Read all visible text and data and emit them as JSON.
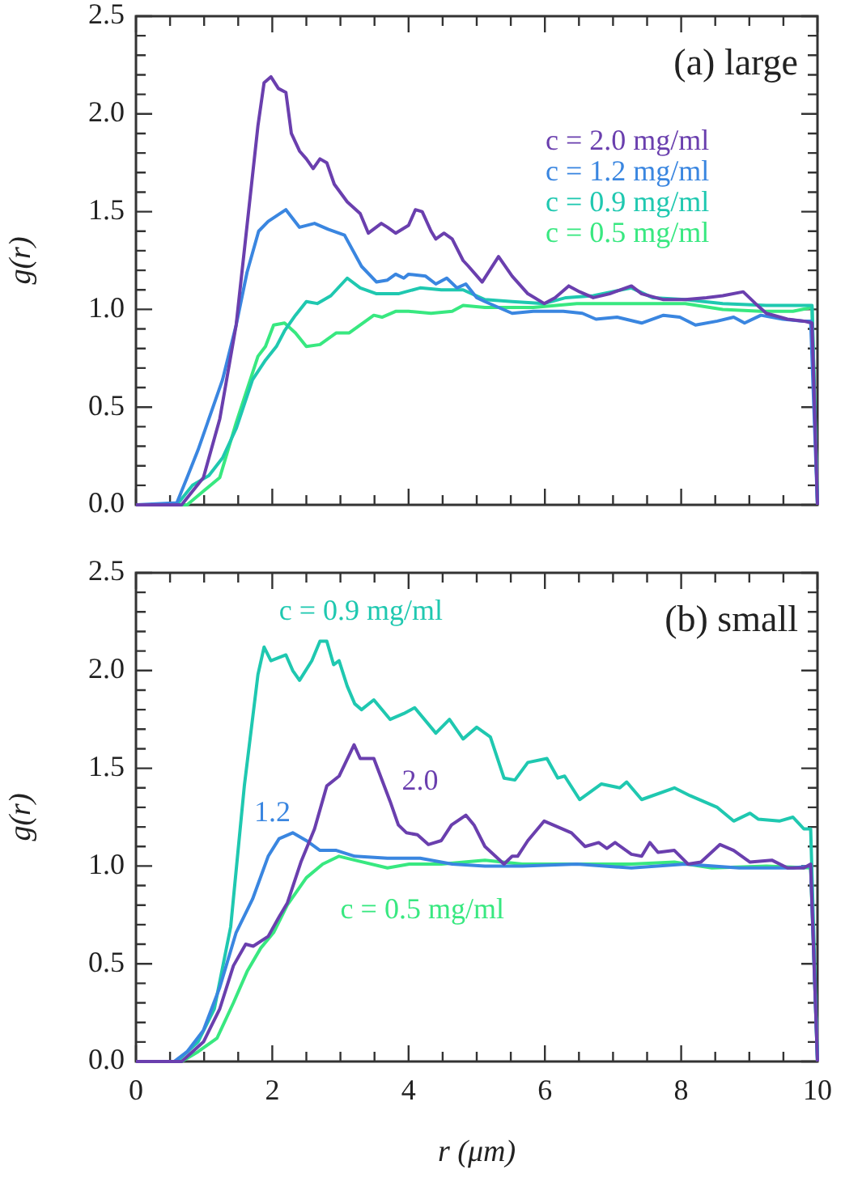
{
  "chart_data": [
    {
      "type": "line",
      "title": "(a) large",
      "ylabel": "g(r)",
      "legend": "top right",
      "tick_labels": "y",
      "grid": false,
      "marker": "none",
      "line_style": "solid",
      "xlim": [
        0,
        10
      ],
      "ylim": [
        0,
        2.5
      ],
      "xticks": [
        0,
        {
          "value": 0.5,
          "label": null
        },
        {
          "value": 1,
          "label": null
        },
        {
          "value": 1.5,
          "label": null
        },
        2,
        {
          "value": 2.5,
          "label": null
        },
        {
          "value": 3,
          "label": null
        },
        {
          "value": 3.5,
          "label": null
        },
        4,
        {
          "value": 4.5,
          "label": null
        },
        {
          "value": 5,
          "label": null
        },
        {
          "value": 5.5,
          "label": null
        },
        6,
        {
          "value": 6.5,
          "label": null
        },
        {
          "value": 7,
          "label": null
        },
        {
          "value": 7.5,
          "label": null
        },
        8,
        {
          "value": 8.5,
          "label": null
        },
        {
          "value": 9,
          "label": null
        },
        {
          "value": 9.5,
          "label": null
        },
        10
      ],
      "yticks": [
        {
          "value": 0,
          "label": "0.0"
        },
        {
          "value": 0.1,
          "label": null
        },
        {
          "value": 0.2,
          "label": null
        },
        {
          "value": 0.3,
          "label": null
        },
        {
          "value": 0.4,
          "label": null
        },
        0.5,
        {
          "value": 0.6,
          "label": null
        },
        {
          "value": 0.7,
          "label": null
        },
        {
          "value": 0.8,
          "label": null
        },
        {
          "value": 0.9,
          "label": null
        },
        {
          "value": 1,
          "label": "1.0"
        },
        {
          "value": 1.1,
          "label": null
        },
        {
          "value": 1.2,
          "label": null
        },
        {
          "value": 1.3,
          "label": null
        },
        {
          "value": 1.4,
          "label": null
        },
        1.5,
        {
          "value": 1.6,
          "label": null
        },
        {
          "value": 1.7,
          "label": null
        },
        {
          "value": 1.8,
          "label": null
        },
        {
          "value": 1.9,
          "label": null
        },
        {
          "value": 2,
          "label": "2.0"
        },
        {
          "value": 2.1,
          "label": null
        },
        {
          "value": 2.2,
          "label": null
        },
        {
          "value": 2.3,
          "label": null
        },
        {
          "value": 2.4,
          "label": null
        },
        2.5
      ],
      "series": [
        {
          "name": "c = 2.0 mg/ml",
          "color": "#6a3fae",
          "x": [
            0,
            0.67,
            0.99,
            1.23,
            1.47,
            1.79,
            1.88,
            1.98,
            2.09,
            2.2,
            2.28,
            2.4,
            2.5,
            2.6,
            2.7,
            2.8,
            2.91,
            3.1,
            3.29,
            3.41,
            3.6,
            3.69,
            3.81,
            4.0,
            4.1,
            4.2,
            4.33,
            4.4,
            4.52,
            4.64,
            4.8,
            4.88,
            5.08,
            5.32,
            5.52,
            5.75,
            5.99,
            6.15,
            6.35,
            6.51,
            6.71,
            6.95,
            7.27,
            7.42,
            7.74,
            8.06,
            8.37,
            8.61,
            8.91,
            9.09,
            9.25,
            9.56,
            9.8,
            9.92,
            10
          ],
          "values": [
            0,
            0,
            0.14,
            0.44,
            0.92,
            1.94,
            2.16,
            2.19,
            2.13,
            2.11,
            1.9,
            1.81,
            1.77,
            1.72,
            1.77,
            1.75,
            1.64,
            1.55,
            1.49,
            1.39,
            1.44,
            1.42,
            1.39,
            1.43,
            1.51,
            1.5,
            1.4,
            1.36,
            1.39,
            1.36,
            1.25,
            1.22,
            1.14,
            1.27,
            1.17,
            1.08,
            1.03,
            1.06,
            1.12,
            1.09,
            1.06,
            1.08,
            1.12,
            1.08,
            1.05,
            1.05,
            1.06,
            1.07,
            1.09,
            1.03,
            0.98,
            0.95,
            0.94,
            0.93,
            0
          ]
        },
        {
          "name": "c = 1.2 mg/ml",
          "color": "#3a86e0",
          "x": [
            0,
            0.6,
            0.75,
            0.91,
            1.07,
            1.27,
            1.47,
            1.63,
            1.8,
            1.94,
            2.2,
            2.4,
            2.62,
            2.82,
            3.06,
            3.31,
            3.53,
            3.69,
            3.81,
            3.93,
            4.0,
            4.25,
            4.4,
            4.56,
            4.71,
            4.84,
            5.0,
            5.12,
            5.52,
            5.83,
            6.27,
            6.55,
            6.75,
            7.06,
            7.42,
            7.74,
            7.98,
            8.21,
            8.53,
            8.77,
            8.93,
            9.17,
            9.49,
            9.8,
            9.9,
            10
          ],
          "values": [
            0,
            0.01,
            0.14,
            0.28,
            0.44,
            0.64,
            0.92,
            1.19,
            1.4,
            1.45,
            1.51,
            1.42,
            1.44,
            1.41,
            1.38,
            1.22,
            1.14,
            1.15,
            1.18,
            1.16,
            1.18,
            1.17,
            1.13,
            1.16,
            1.11,
            1.13,
            1.06,
            1.04,
            0.98,
            0.99,
            0.99,
            0.98,
            0.95,
            0.96,
            0.93,
            0.97,
            0.96,
            0.92,
            0.94,
            0.96,
            0.93,
            0.97,
            0.95,
            0.94,
            0.94,
            0
          ]
        },
        {
          "name": "c = 0.9 mg/ml",
          "color": "#1fc8b0",
          "x": [
            0,
            0.6,
            0.83,
            1.07,
            1.27,
            1.47,
            1.71,
            1.9,
            2.06,
            2.18,
            2.34,
            2.5,
            2.66,
            2.86,
            3.1,
            3.29,
            3.53,
            3.85,
            4.17,
            4.48,
            4.8,
            5.12,
            5.52,
            5.99,
            6.31,
            6.71,
            7.27,
            7.58,
            8.06,
            8.61,
            9.25,
            9.92,
            10
          ],
          "values": [
            0,
            0,
            0.1,
            0.15,
            0.24,
            0.39,
            0.64,
            0.74,
            0.81,
            0.89,
            0.97,
            1.04,
            1.03,
            1.07,
            1.16,
            1.11,
            1.08,
            1.08,
            1.11,
            1.1,
            1.1,
            1.05,
            1.04,
            1.03,
            1.06,
            1.07,
            1.11,
            1.06,
            1.05,
            1.03,
            1.02,
            1.02,
            0
          ]
        },
        {
          "name": "c = 0.5 mg/ml",
          "color": "#38e880",
          "x": [
            0,
            0.75,
            0.99,
            1.23,
            1.47,
            1.79,
            1.9,
            2.02,
            2.18,
            2.34,
            2.5,
            2.7,
            2.94,
            3.13,
            3.37,
            3.49,
            3.61,
            3.81,
            4.0,
            4.33,
            4.64,
            4.8,
            5.12,
            5.4,
            5.83,
            6.47,
            7.27,
            8.06,
            8.61,
            9.17,
            9.64,
            9.92,
            10
          ],
          "values": [
            0,
            0,
            0.07,
            0.14,
            0.42,
            0.76,
            0.81,
            0.92,
            0.93,
            0.88,
            0.81,
            0.82,
            0.88,
            0.88,
            0.94,
            0.97,
            0.96,
            0.99,
            0.99,
            0.98,
            0.99,
            1.02,
            1.01,
            1.01,
            1.01,
            1.03,
            1.03,
            1.03,
            1.0,
            0.99,
            0.99,
            1.01,
            0
          ]
        }
      ]
    },
    {
      "type": "line",
      "title": "(b) small",
      "xlabel": "r (μm)",
      "ylabel": "g(r)",
      "grid": false,
      "marker": "none",
      "line_style": "solid",
      "xlim": [
        0,
        10
      ],
      "ylim": [
        0,
        2.5
      ],
      "xticks": [
        0,
        {
          "value": 0.5,
          "label": null
        },
        {
          "value": 1,
          "label": null
        },
        {
          "value": 1.5,
          "label": null
        },
        2,
        {
          "value": 2.5,
          "label": null
        },
        {
          "value": 3,
          "label": null
        },
        {
          "value": 3.5,
          "label": null
        },
        4,
        {
          "value": 4.5,
          "label": null
        },
        {
          "value": 5,
          "label": null
        },
        {
          "value": 5.5,
          "label": null
        },
        6,
        {
          "value": 6.5,
          "label": null
        },
        {
          "value": 7,
          "label": null
        },
        {
          "value": 7.5,
          "label": null
        },
        8,
        {
          "value": 8.5,
          "label": null
        },
        {
          "value": 9,
          "label": null
        },
        {
          "value": 9.5,
          "label": null
        },
        10
      ],
      "yticks": [
        {
          "value": 0,
          "label": "0.0"
        },
        {
          "value": 0.1,
          "label": null
        },
        {
          "value": 0.2,
          "label": null
        },
        {
          "value": 0.3,
          "label": null
        },
        {
          "value": 0.4,
          "label": null
        },
        0.5,
        {
          "value": 0.6,
          "label": null
        },
        {
          "value": 0.7,
          "label": null
        },
        {
          "value": 0.8,
          "label": null
        },
        {
          "value": 0.9,
          "label": null
        },
        {
          "value": 1,
          "label": "1.0"
        },
        {
          "value": 1.1,
          "label": null
        },
        {
          "value": 1.2,
          "label": null
        },
        {
          "value": 1.3,
          "label": null
        },
        {
          "value": 1.4,
          "label": null
        },
        1.5,
        {
          "value": 1.6,
          "label": null
        },
        {
          "value": 1.7,
          "label": null
        },
        {
          "value": 1.8,
          "label": null
        },
        {
          "value": 1.9,
          "label": null
        },
        {
          "value": 2,
          "label": "2.0"
        },
        {
          "value": 2.1,
          "label": null
        },
        {
          "value": 2.2,
          "label": null
        },
        {
          "value": 2.3,
          "label": null
        },
        {
          "value": 2.4,
          "label": null
        },
        2.5
      ],
      "series": [
        {
          "name": "2.0",
          "color": "#6a3fae",
          "x": [
            0,
            0.67,
            0.99,
            1.23,
            1.43,
            1.61,
            1.72,
            1.94,
            2.1,
            2.22,
            2.42,
            2.62,
            2.8,
            2.98,
            3.2,
            3.29,
            3.49,
            3.73,
            3.85,
            3.97,
            4.13,
            4.29,
            4.48,
            4.63,
            4.84,
            4.96,
            5.12,
            5.4,
            5.52,
            5.6,
            5.75,
            5.99,
            6.39,
            6.59,
            6.79,
            6.91,
            7.03,
            7.27,
            7.42,
            7.54,
            7.66,
            7.9,
            8.1,
            8.29,
            8.57,
            8.77,
            9.01,
            9.33,
            9.56,
            9.8,
            9.9,
            10
          ],
          "values": [
            0,
            0,
            0.1,
            0.27,
            0.49,
            0.6,
            0.59,
            0.64,
            0.74,
            0.81,
            1.02,
            1.19,
            1.41,
            1.46,
            1.62,
            1.55,
            1.55,
            1.33,
            1.21,
            1.17,
            1.16,
            1.11,
            1.13,
            1.21,
            1.26,
            1.21,
            1.1,
            1.01,
            1.05,
            1.05,
            1.13,
            1.23,
            1.17,
            1.1,
            1.12,
            1.09,
            1.12,
            1.06,
            1.05,
            1.12,
            1.07,
            1.08,
            1.01,
            1.02,
            1.11,
            1.08,
            1.02,
            1.03,
            0.99,
            0.99,
            1.01,
            0
          ]
        },
        {
          "name": "1.2",
          "color": "#3a86e0",
          "x": [
            0,
            0.56,
            0.75,
            0.99,
            1.23,
            1.47,
            1.71,
            1.94,
            2.1,
            2.3,
            2.5,
            2.7,
            2.94,
            3.21,
            3.69,
            4.17,
            4.64,
            5.12,
            5.67,
            6.47,
            7.27,
            8.06,
            8.85,
            9.64,
            9.9,
            10
          ],
          "values": [
            0,
            0,
            0.05,
            0.16,
            0.38,
            0.66,
            0.83,
            1.05,
            1.14,
            1.17,
            1.13,
            1.08,
            1.08,
            1.05,
            1.04,
            1.04,
            1.01,
            1.0,
            1.0,
            1.01,
            0.99,
            1.01,
            0.99,
            0.99,
            1.0,
            0
          ]
        },
        {
          "name": "c = 0.9 mg/ml",
          "color": "#1fc8b0",
          "x": [
            0,
            0.6,
            0.91,
            1.15,
            1.39,
            1.59,
            1.79,
            1.88,
            1.98,
            2.2,
            2.3,
            2.4,
            2.58,
            2.7,
            2.8,
            2.9,
            2.98,
            3.1,
            3.21,
            3.31,
            3.49,
            3.73,
            3.93,
            4.09,
            4.4,
            4.6,
            4.8,
            5.0,
            5.2,
            5.4,
            5.56,
            5.75,
            6.03,
            6.19,
            6.29,
            6.51,
            6.83,
            7.1,
            7.2,
            7.42,
            7.9,
            8.13,
            8.53,
            8.77,
            9.01,
            9.13,
            9.44,
            9.64,
            9.8,
            9.9,
            10
          ],
          "values": [
            0,
            0,
            0.1,
            0.27,
            0.69,
            1.41,
            1.98,
            2.12,
            2.05,
            2.08,
            2.0,
            1.95,
            2.05,
            2.15,
            2.15,
            2.03,
            2.05,
            1.92,
            1.83,
            1.8,
            1.85,
            1.75,
            1.78,
            1.81,
            1.68,
            1.75,
            1.65,
            1.71,
            1.66,
            1.45,
            1.44,
            1.53,
            1.55,
            1.45,
            1.46,
            1.34,
            1.42,
            1.4,
            1.43,
            1.34,
            1.4,
            1.36,
            1.3,
            1.23,
            1.27,
            1.24,
            1.23,
            1.25,
            1.19,
            1.19,
            0
          ]
        },
        {
          "name": "c = 0.5 mg/ml",
          "color": "#38e880",
          "x": [
            0,
            0.67,
            0.91,
            1.19,
            1.43,
            1.63,
            1.83,
            2.02,
            2.22,
            2.5,
            2.74,
            2.98,
            3.21,
            3.69,
            4.01,
            4.48,
            5.12,
            5.67,
            6.47,
            7.27,
            7.9,
            8.45,
            9.25,
            9.9,
            10
          ],
          "values": [
            0,
            0,
            0.05,
            0.12,
            0.3,
            0.46,
            0.58,
            0.66,
            0.8,
            0.94,
            1.01,
            1.05,
            1.03,
            0.99,
            1.01,
            1.01,
            1.03,
            1.01,
            1.01,
            1.01,
            1.02,
            0.99,
            1.0,
            0.99,
            0
          ]
        }
      ]
    }
  ]
}
